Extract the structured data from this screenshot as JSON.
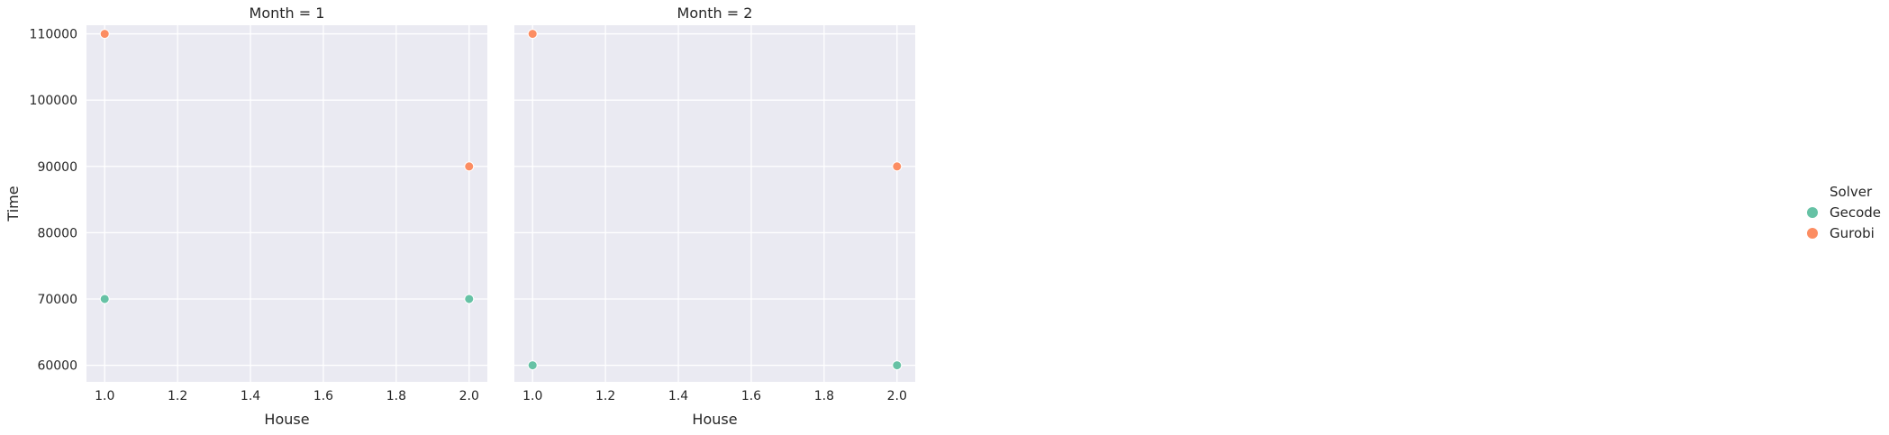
{
  "chart_data": {
    "type": "scatter",
    "xlabel": "House",
    "ylabel": "Time",
    "xlim": [
      0.95,
      2.05
    ],
    "ylim": [
      57500,
      111300
    ],
    "xticks": [
      1.0,
      1.2,
      1.4,
      1.6,
      1.8,
      2.0
    ],
    "xtick_labels": [
      "1.0",
      "1.2",
      "1.4",
      "1.6",
      "1.8",
      "2.0"
    ],
    "yticks": [
      60000,
      70000,
      80000,
      90000,
      100000,
      110000
    ],
    "ytick_labels": [
      "60000",
      "70000",
      "80000",
      "90000",
      "100000",
      "110000"
    ],
    "grid": true,
    "legend": {
      "title": "Solver",
      "placement": "right",
      "entries": [
        {
          "name": "Gecode",
          "color": "#66c2a5"
        },
        {
          "name": "Gurobi",
          "color": "#fc8d62"
        }
      ]
    },
    "panels": [
      {
        "title": "Month = 1",
        "series": [
          {
            "name": "Gecode",
            "color": "#66c2a5",
            "x": [
              1.0,
              2.0
            ],
            "y": [
              70000,
              70000
            ]
          },
          {
            "name": "Gurobi",
            "color": "#fc8d62",
            "x": [
              1.0,
              2.0
            ],
            "y": [
              110000,
              90000
            ]
          }
        ]
      },
      {
        "title": "Month = 2",
        "series": [
          {
            "name": "Gecode",
            "color": "#66c2a5",
            "x": [
              1.0,
              2.0
            ],
            "y": [
              60000,
              60000
            ]
          },
          {
            "name": "Gurobi",
            "color": "#fc8d62",
            "x": [
              1.0,
              2.0
            ],
            "y": [
              110000,
              90000
            ]
          }
        ]
      }
    ]
  }
}
